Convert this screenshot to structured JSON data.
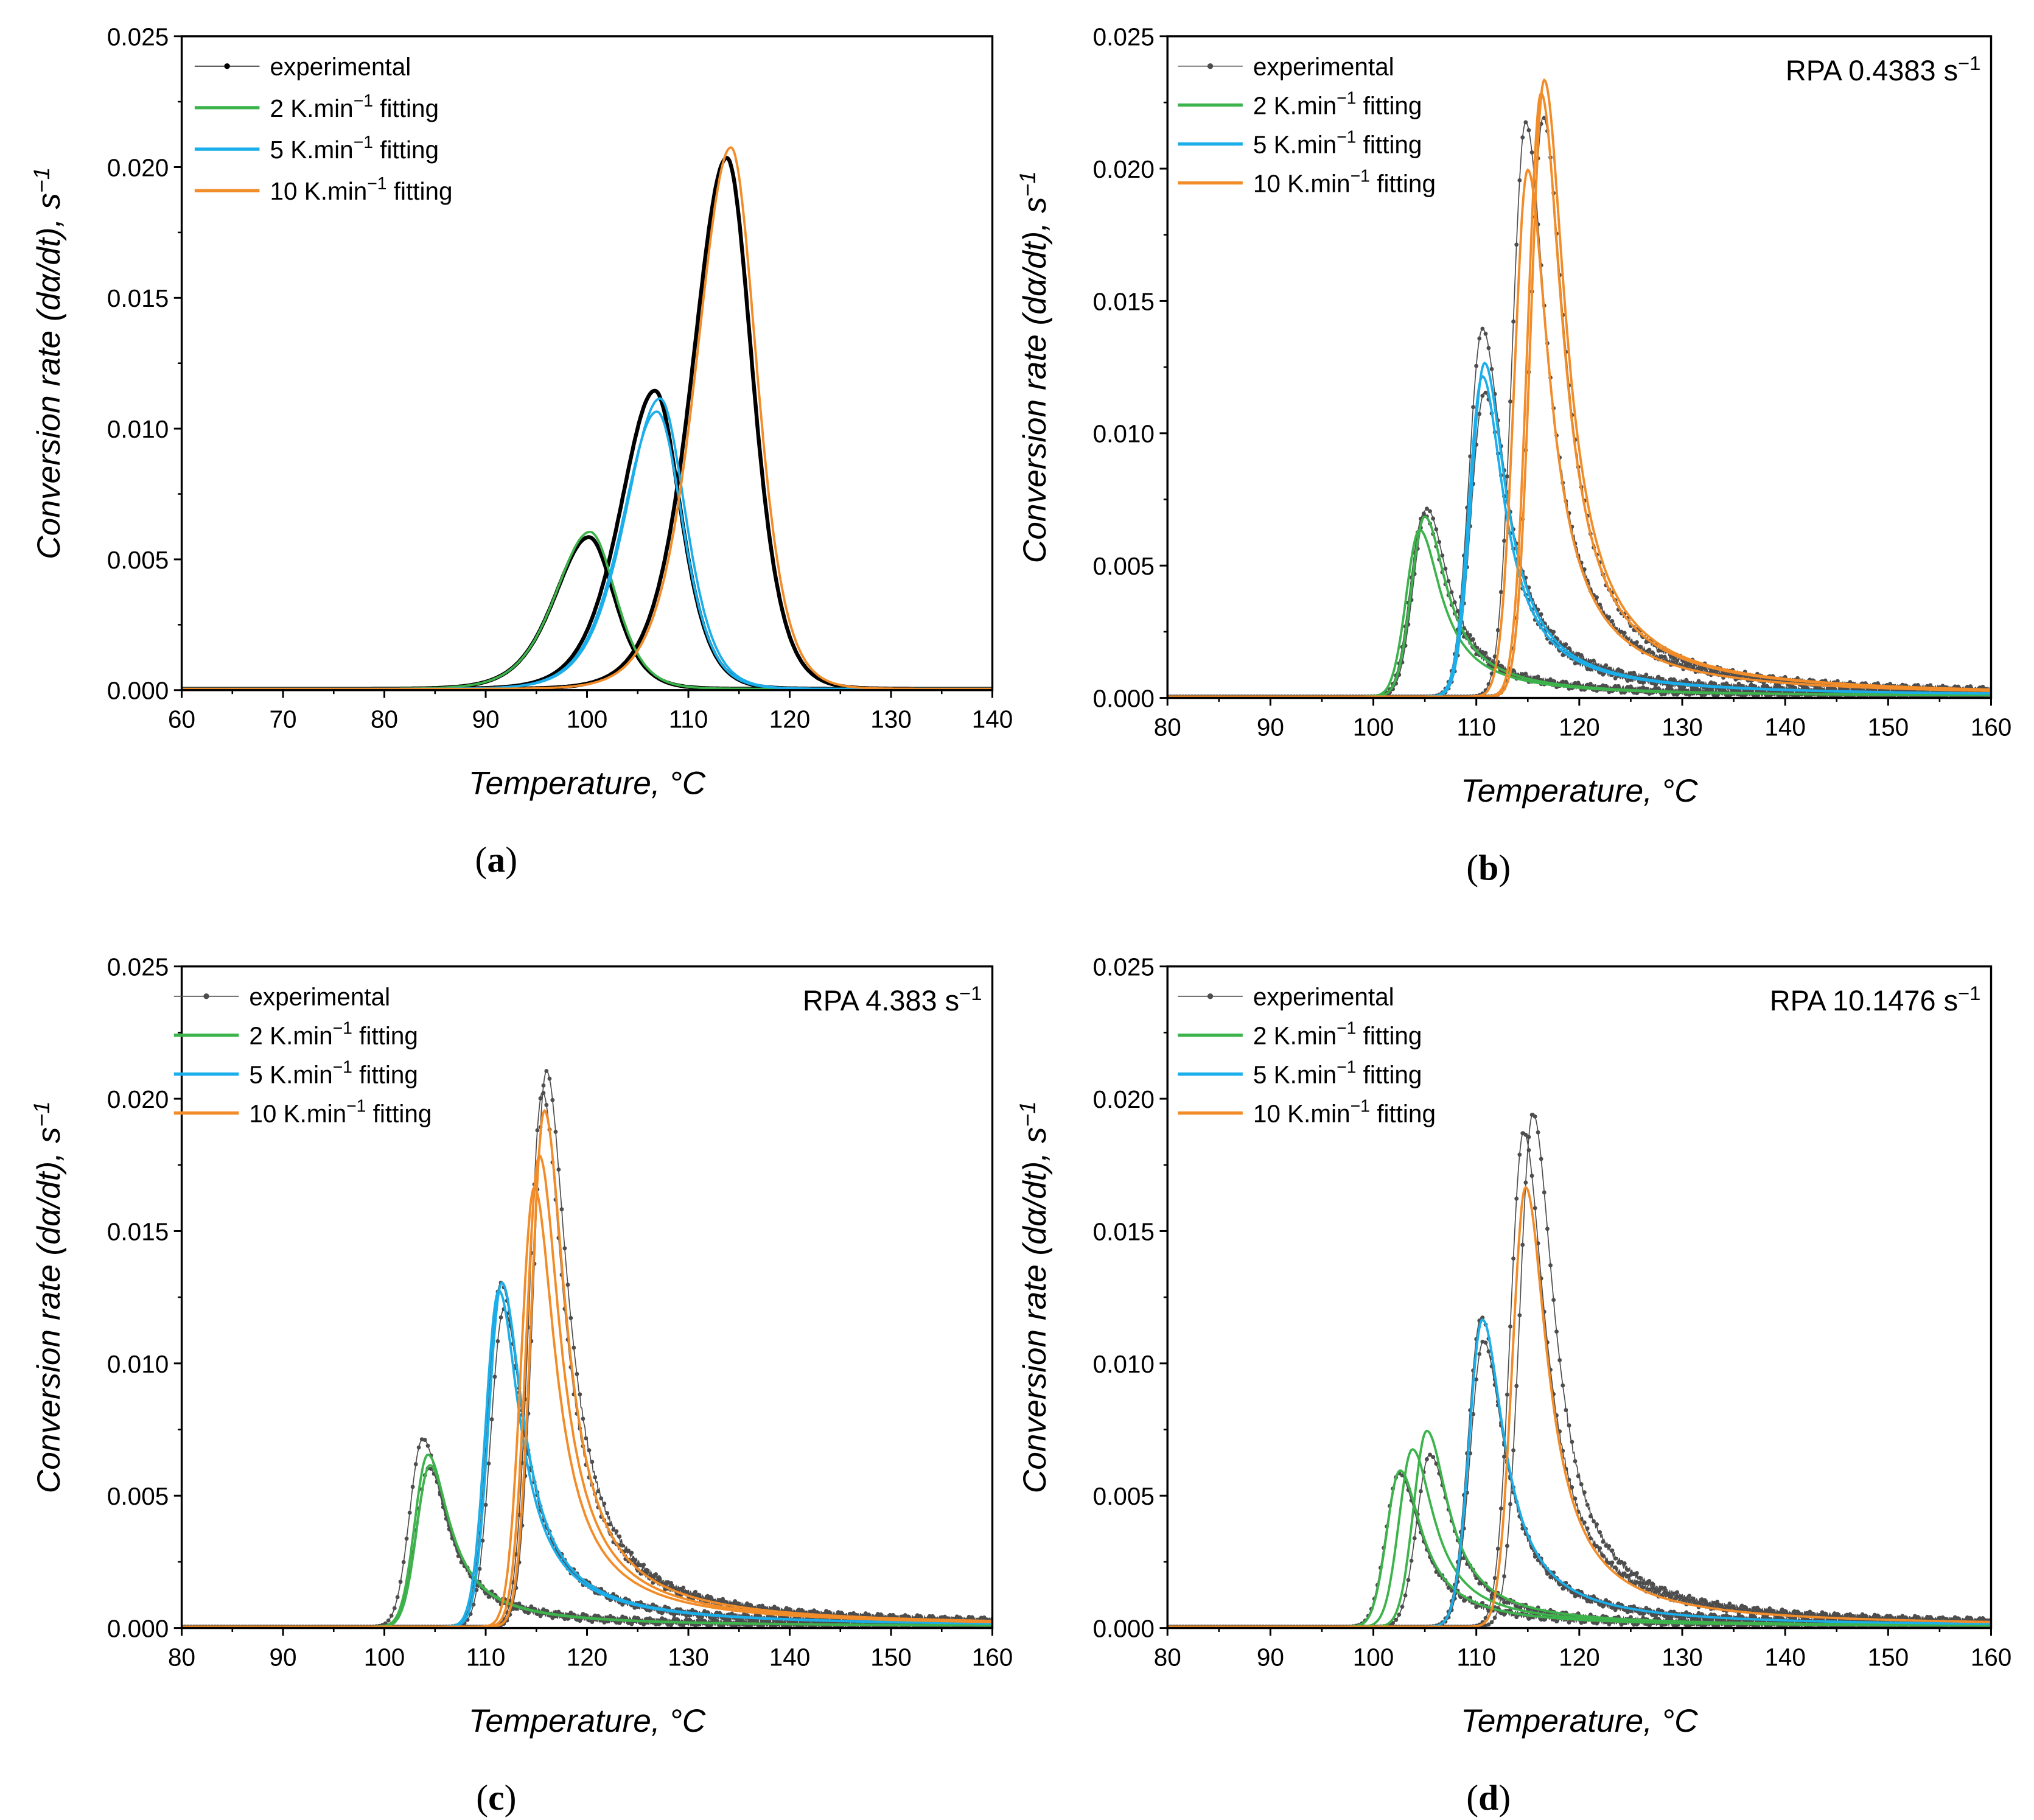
{
  "chart_data": [
    {
      "panel": "a",
      "caption": "(a)",
      "type": "line",
      "annotation": "",
      "xlabel": "Temperature, °C",
      "ylabel": "Conversion rate (dα/dt), s⁻¹",
      "xlim": [
        60,
        140
      ],
      "ylim": [
        0,
        0.025
      ],
      "xticks": [
        60,
        70,
        80,
        90,
        100,
        110,
        120,
        130,
        140
      ],
      "yticks": [
        "0.000",
        "0.005",
        "0.010",
        "0.015",
        "0.020",
        "0.025"
      ],
      "shape": "symmetric",
      "legend": [
        "experimental",
        "2 K.min⁻¹ fitting",
        "5 K.min⁻¹ fitting",
        "10 K.min⁻¹ fitting"
      ],
      "series": [
        {
          "name": "experimental",
          "kind": "exp",
          "color": "#000000",
          "peaks": [
            [
              100.2,
              0.0058
            ],
            [
              106.7,
              0.0114
            ],
            [
              113.8,
              0.0203
            ]
          ]
        },
        {
          "name": "2 K.min⁻¹ fitting",
          "kind": "fit",
          "color": "#3cb44b",
          "peaks": [
            [
              100.3,
              0.006
            ]
          ]
        },
        {
          "name": "5 K.min⁻¹ fitting",
          "kind": "fit",
          "color": "#1aaeea",
          "peaks": [
            [
              107.2,
              0.0111
            ],
            [
              106.9,
              0.0106
            ]
          ]
        },
        {
          "name": "10 K.min⁻¹ fitting",
          "kind": "fit",
          "color": "#f28c28",
          "peaks": [
            [
              114.2,
              0.0207
            ]
          ]
        }
      ]
    },
    {
      "panel": "b",
      "caption": "(b)",
      "type": "line",
      "annotation": "RPA 0.4383 s⁻¹",
      "xlabel": "Temperature, °C",
      "ylabel": "Conversion rate (dα/dt), s⁻¹",
      "xlim": [
        80,
        160
      ],
      "ylim": [
        0,
        0.025
      ],
      "xticks": [
        80,
        90,
        100,
        110,
        120,
        130,
        140,
        150,
        160
      ],
      "yticks": [
        "0.000",
        "0.005",
        "0.010",
        "0.015",
        "0.020",
        "0.025"
      ],
      "shape": "tailed",
      "legend": [
        "experimental",
        "2 K.min⁻¹ fitting",
        "5 K.min⁻¹ fitting",
        "10 K.min⁻¹ fitting"
      ],
      "series": [
        {
          "name": "experimental",
          "kind": "exp",
          "color": "#4d4d4d",
          "peaks": [
            [
              104.9,
              0.0069
            ],
            [
              105.2,
              0.0071
            ],
            [
              110.6,
              0.0139
            ],
            [
              110.8,
              0.0115
            ],
            [
              114.8,
              0.0217
            ],
            [
              116.5,
              0.0219
            ]
          ]
        },
        {
          "name": "2 K.min⁻¹ fitting",
          "kind": "fit",
          "color": "#3cb44b",
          "peaks": [
            [
              104.5,
              0.0063
            ],
            [
              105.0,
              0.0068
            ]
          ]
        },
        {
          "name": "5 K.min⁻¹ fitting",
          "kind": "fit",
          "color": "#1aaeea",
          "peaks": [
            [
              110.8,
              0.0126
            ],
            [
              110.6,
              0.0121
            ]
          ]
        },
        {
          "name": "10 K.min⁻¹ fitting",
          "kind": "fit",
          "color": "#f28c28",
          "peaks": [
            [
              115.0,
              0.0199
            ],
            [
              116.6,
              0.0233
            ],
            [
              116.3,
              0.0228
            ]
          ]
        }
      ]
    },
    {
      "panel": "c",
      "caption": "(c)",
      "type": "line",
      "annotation": "RPA 4.383 s⁻¹",
      "xlabel": "Temperature, °C",
      "ylabel": "Conversion rate (dα/dt), s⁻¹",
      "xlim": [
        80,
        160
      ],
      "ylim": [
        0,
        0.025
      ],
      "xticks": [
        80,
        90,
        100,
        110,
        120,
        130,
        140,
        150,
        160
      ],
      "yticks": [
        "0.000",
        "0.005",
        "0.010",
        "0.015",
        "0.020",
        "0.025"
      ],
      "shape": "tailed",
      "legend": [
        "experimental",
        "2 K.min⁻¹ fitting",
        "5 K.min⁻¹ fitting",
        "10 K.min⁻¹ fitting"
      ],
      "series": [
        {
          "name": "experimental",
          "kind": "exp",
          "color": "#4d4d4d",
          "peaks": [
            [
              103.8,
              0.0071
            ],
            [
              104.4,
              0.006
            ],
            [
              111.5,
              0.013
            ],
            [
              111.8,
              0.012
            ],
            [
              116.0,
              0.021
            ],
            [
              115.6,
              0.0202
            ]
          ]
        },
        {
          "name": "2 K.min⁻¹ fitting",
          "kind": "fit",
          "color": "#3cb44b",
          "peaks": [
            [
              104.3,
              0.0065
            ],
            [
              104.5,
              0.0061
            ]
          ]
        },
        {
          "name": "5 K.min⁻¹ fitting",
          "kind": "fit",
          "color": "#1aaeea",
          "peaks": [
            [
              111.6,
              0.013
            ],
            [
              111.3,
              0.0127
            ]
          ]
        },
        {
          "name": "10 K.min⁻¹ fitting",
          "kind": "fit",
          "color": "#f28c28",
          "peaks": [
            [
              114.8,
              0.0166
            ],
            [
              115.3,
              0.0178
            ],
            [
              115.8,
              0.0195
            ]
          ]
        }
      ]
    },
    {
      "panel": "d",
      "caption": "(d)",
      "type": "line",
      "annotation": "RPA 10.1476 s⁻¹",
      "xlabel": "Temperature, °C",
      "ylabel": "Conversion rate (dα/dt), s⁻¹",
      "xlim": [
        80,
        160
      ],
      "ylim": [
        0,
        0.025
      ],
      "xticks": [
        80,
        90,
        100,
        110,
        120,
        130,
        140,
        150,
        160
      ],
      "yticks": [
        "0.000",
        "0.005",
        "0.010",
        "0.015",
        "0.020",
        "0.025"
      ],
      "shape": "tailed",
      "legend": [
        "experimental",
        "2 K.min⁻¹ fitting",
        "5 K.min⁻¹ fitting",
        "10 K.min⁻¹ fitting"
      ],
      "series": [
        {
          "name": "experimental",
          "kind": "exp",
          "color": "#4d4d4d",
          "peaks": [
            [
              102.5,
              0.0058
            ],
            [
              105.5,
              0.0065
            ],
            [
              110.5,
              0.0117
            ],
            [
              110.7,
              0.0108
            ],
            [
              115.5,
              0.0194
            ],
            [
              114.6,
              0.0187
            ]
          ]
        },
        {
          "name": "2 K.min⁻¹ fitting",
          "kind": "fit",
          "color": "#3cb44b",
          "peaks": [
            [
              103.8,
              0.0067
            ],
            [
              105.2,
              0.0074
            ],
            [
              102.6,
              0.0059
            ]
          ]
        },
        {
          "name": "5 K.min⁻¹ fitting",
          "kind": "fit",
          "color": "#1aaeea",
          "peaks": [
            [
              110.6,
              0.0116
            ]
          ]
        },
        {
          "name": "10 K.min⁻¹ fitting",
          "kind": "fit",
          "color": "#f28c28",
          "peaks": [
            [
              114.8,
              0.0166
            ]
          ]
        }
      ]
    }
  ]
}
